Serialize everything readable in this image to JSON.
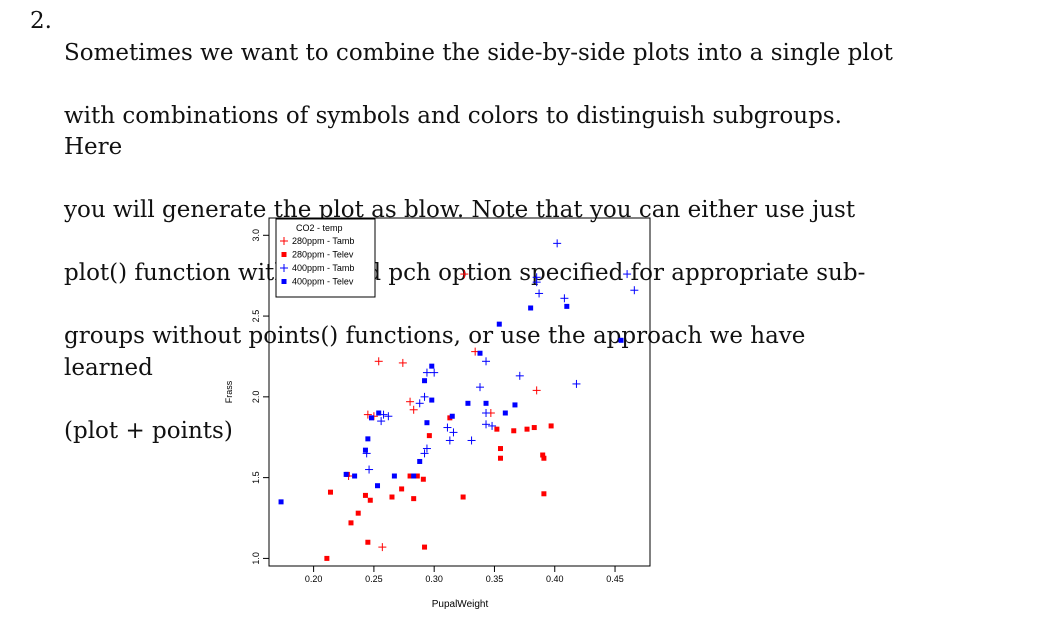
{
  "question": {
    "number": "2.",
    "lines": [
      "Sometimes we want to combine the side-by-side plots into a single plot",
      "with combinations of symbols and colors to distinguish subgroups. Here",
      "you will generate the plot as blow. Note that you can either use just",
      "plot() function with col and pch option specified for appropriate sub-",
      "groups without points() functions, or use the approach we have learned",
      "(plot + points)"
    ]
  },
  "chart_data": {
    "type": "scatter",
    "title": "",
    "xlabel": "PupalWeight",
    "ylabel": "Frass",
    "xlim": [
      0.163,
      0.479
    ],
    "ylim": [
      0.953,
      3.107
    ],
    "xticks": [
      0.2,
      0.25,
      0.3,
      0.35,
      0.4,
      0.45
    ],
    "xtick_labels": [
      "0.20",
      "0.25",
      "0.30",
      "0.35",
      "0.40",
      "0.45"
    ],
    "yticks": [
      1.0,
      1.5,
      2.0,
      2.5,
      3.0
    ],
    "ytick_labels": [
      "1.0",
      "1.5",
      "2.0",
      "2.5",
      "3.0"
    ],
    "colors": {
      "red": "#ff0000",
      "blue": "#0000ff"
    },
    "legend": {
      "position": "top-left",
      "title": "CO2 - temp",
      "entries": [
        {
          "label": "280ppm - Tamb",
          "color": "#ff0000",
          "symbol": "plus"
        },
        {
          "label": "280ppm - Telev",
          "color": "#ff0000",
          "symbol": "square"
        },
        {
          "label": "400ppm - Tamb",
          "color": "#0000ff",
          "symbol": "plus"
        },
        {
          "label": "400ppm - Telev",
          "color": "#0000ff",
          "symbol": "square"
        }
      ]
    },
    "series": [
      {
        "name": "280ppm - Tamb",
        "color": "#ff0000",
        "symbol": "plus",
        "points": [
          [
            0.229,
            1.51
          ],
          [
            0.245,
            1.89
          ],
          [
            0.25,
            1.88
          ],
          [
            0.254,
            2.22
          ],
          [
            0.257,
            1.07
          ],
          [
            0.274,
            2.21
          ],
          [
            0.28,
            1.97
          ],
          [
            0.283,
            1.92
          ],
          [
            0.325,
            2.76
          ],
          [
            0.334,
            2.28
          ],
          [
            0.347,
            1.9
          ],
          [
            0.385,
            2.04
          ]
        ]
      },
      {
        "name": "280ppm - Telev",
        "color": "#ff0000",
        "symbol": "square",
        "points": [
          [
            0.211,
            1.0
          ],
          [
            0.214,
            1.41
          ],
          [
            0.228,
            1.52
          ],
          [
            0.231,
            1.22
          ],
          [
            0.237,
            1.28
          ],
          [
            0.243,
            1.39
          ],
          [
            0.245,
            1.1
          ],
          [
            0.247,
            1.36
          ],
          [
            0.265,
            1.38
          ],
          [
            0.273,
            1.43
          ],
          [
            0.28,
            1.51
          ],
          [
            0.283,
            1.37
          ],
          [
            0.286,
            1.51
          ],
          [
            0.291,
            1.49
          ],
          [
            0.292,
            1.07
          ],
          [
            0.296,
            1.76
          ],
          [
            0.313,
            1.87
          ],
          [
            0.324,
            1.38
          ],
          [
            0.355,
            1.62
          ],
          [
            0.355,
            1.68
          ],
          [
            0.352,
            1.8
          ],
          [
            0.366,
            1.79
          ],
          [
            0.377,
            1.8
          ],
          [
            0.383,
            1.81
          ],
          [
            0.39,
            1.64
          ],
          [
            0.391,
            1.62
          ],
          [
            0.391,
            1.4
          ],
          [
            0.397,
            1.82
          ]
        ]
      },
      {
        "name": "400ppm - Tamb",
        "color": "#0000ff",
        "symbol": "plus",
        "points": [
          [
            0.244,
            1.65
          ],
          [
            0.246,
            1.55
          ],
          [
            0.256,
            1.85
          ],
          [
            0.258,
            1.89
          ],
          [
            0.262,
            1.88
          ],
          [
            0.288,
            1.96
          ],
          [
            0.292,
            2.0
          ],
          [
            0.292,
            1.65
          ],
          [
            0.294,
            1.68
          ],
          [
            0.294,
            2.15
          ],
          [
            0.3,
            2.15
          ],
          [
            0.311,
            1.81
          ],
          [
            0.313,
            1.73
          ],
          [
            0.316,
            1.78
          ],
          [
            0.331,
            1.73
          ],
          [
            0.338,
            2.06
          ],
          [
            0.343,
            2.22
          ],
          [
            0.343,
            1.9
          ],
          [
            0.343,
            1.83
          ],
          [
            0.348,
            1.82
          ],
          [
            0.371,
            2.13
          ],
          [
            0.385,
            2.74
          ],
          [
            0.385,
            2.71
          ],
          [
            0.387,
            2.64
          ],
          [
            0.402,
            2.95
          ],
          [
            0.408,
            2.61
          ],
          [
            0.418,
            2.08
          ],
          [
            0.46,
            2.76
          ],
          [
            0.466,
            2.66
          ]
        ]
      },
      {
        "name": "400ppm - Telev",
        "color": "#0000ff",
        "symbol": "square",
        "points": [
          [
            0.173,
            1.35
          ],
          [
            0.227,
            1.52
          ],
          [
            0.234,
            1.51
          ],
          [
            0.243,
            1.67
          ],
          [
            0.245,
            1.74
          ],
          [
            0.248,
            1.87
          ],
          [
            0.253,
            1.45
          ],
          [
            0.254,
            1.9
          ],
          [
            0.267,
            1.51
          ],
          [
            0.283,
            1.51
          ],
          [
            0.288,
            1.6
          ],
          [
            0.292,
            2.1
          ],
          [
            0.294,
            1.84
          ],
          [
            0.298,
            2.19
          ],
          [
            0.315,
            1.88
          ],
          [
            0.328,
            1.96
          ],
          [
            0.338,
            2.27
          ],
          [
            0.343,
            1.96
          ],
          [
            0.354,
            2.45
          ],
          [
            0.367,
            1.95
          ],
          [
            0.38,
            2.55
          ],
          [
            0.41,
            2.56
          ],
          [
            0.455,
            2.35
          ],
          [
            0.359,
            1.9
          ],
          [
            0.298,
            1.98
          ]
        ]
      }
    ]
  }
}
